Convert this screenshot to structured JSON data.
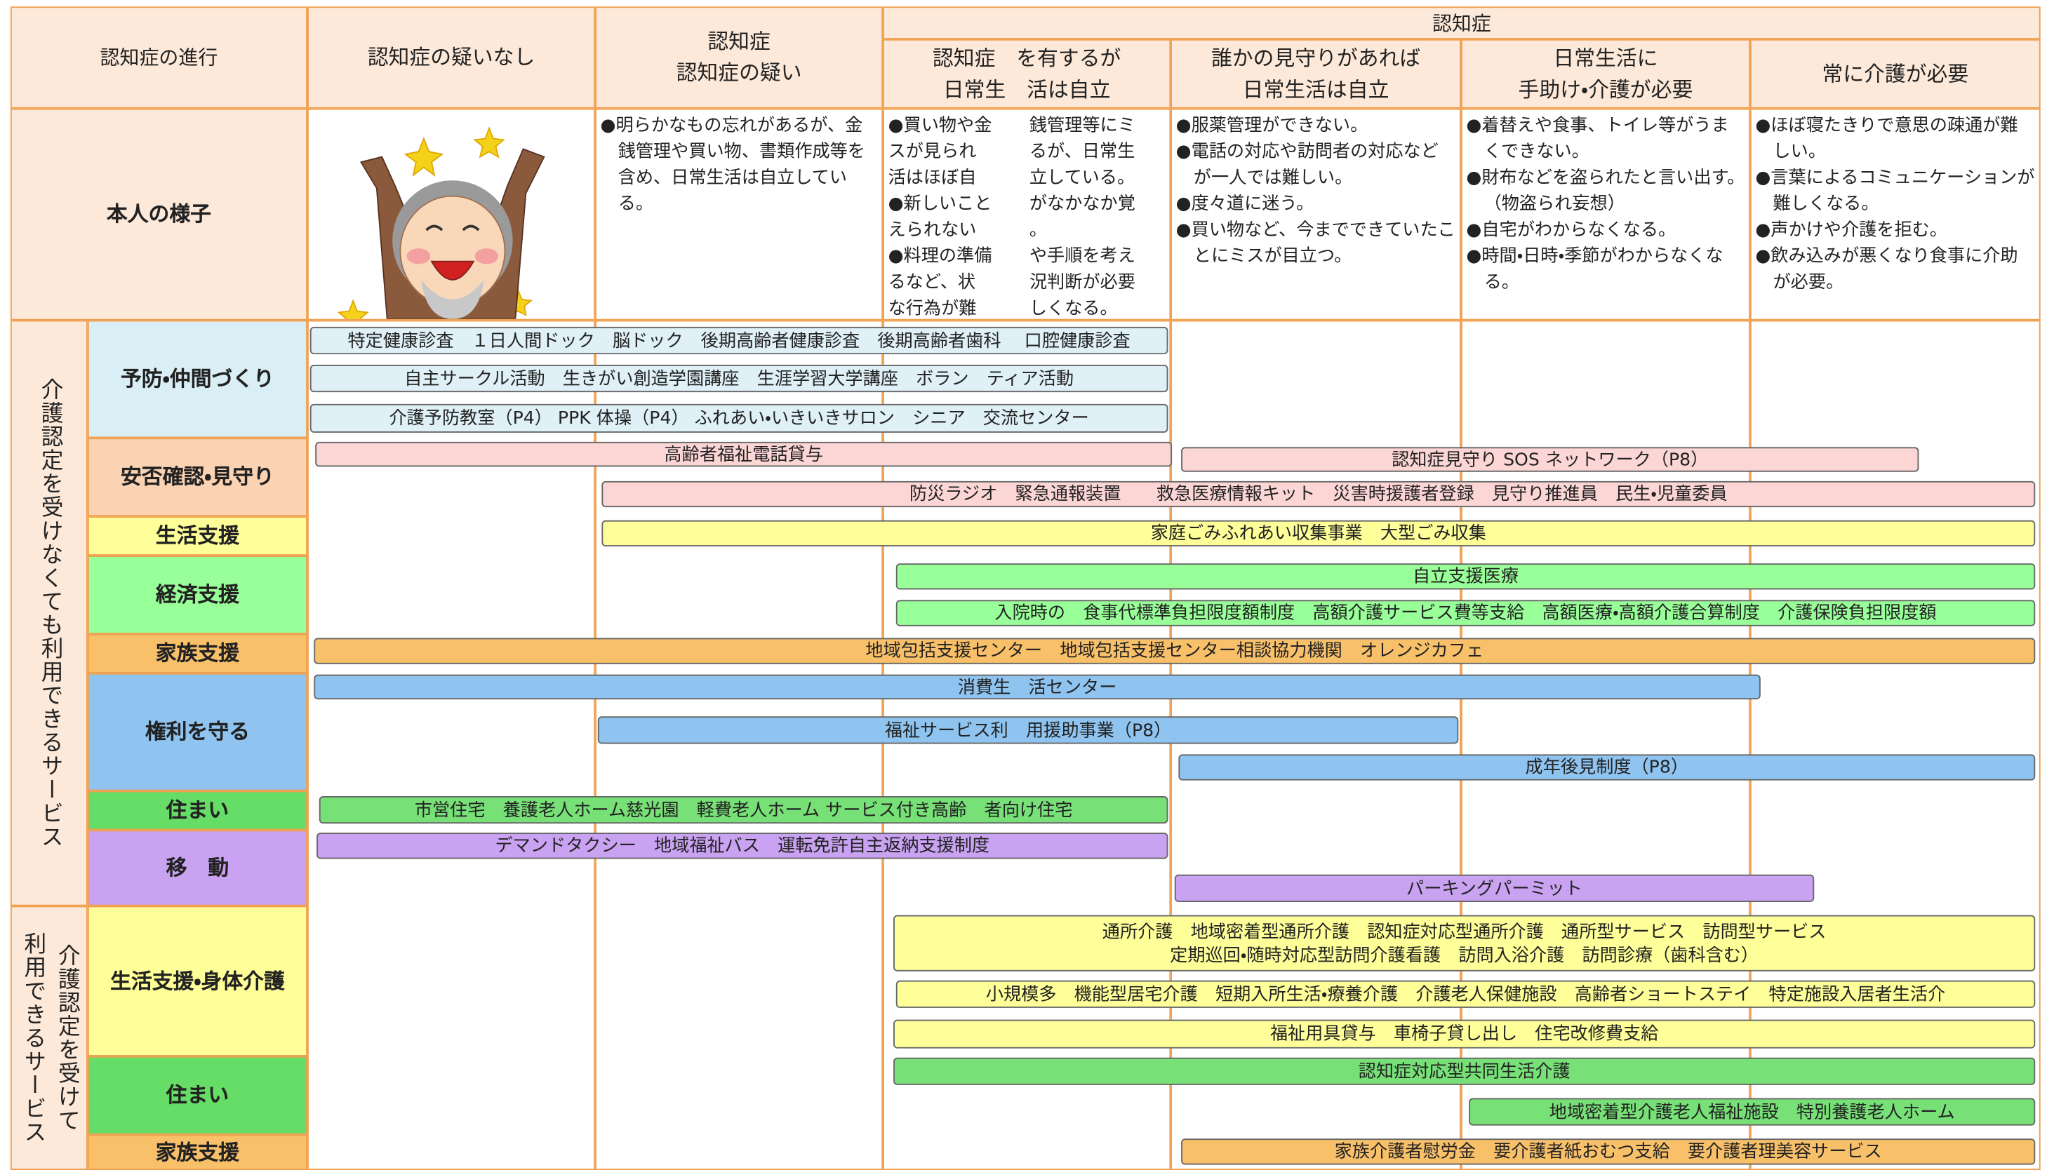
{
  "header": {
    "progression": "認知症の進行",
    "dementia": "認知症",
    "stages": [
      "認知症の疑いなし",
      "認知症\n認知症の疑い",
      "認知症　を有するが\n日常生　活は自立",
      "誰かの見守りがあれば\n日常生活は自立",
      "日常生活に\n手助け・介護が必要",
      "常に介護が必要"
    ]
  },
  "condition": {
    "label": "本人の様子",
    "descriptions": [
      [
        "●明らかなもの忘れがあるが、金銭管理や買い物、書類作成等を含め、日常生活は自立している。"
      ],
      {
        "left": [
          "●買い物や金",
          "スが見られ",
          "活はほぼ自",
          "●新しいこと",
          "えられない",
          "●料理の準備",
          "るなど、状",
          "な行為が難"
        ],
        "right": [
          "銭管理等にミ",
          "るが、日常生",
          "立している。",
          "がなかなか覚",
          "。",
          "や手順を考え",
          "況判断が必要",
          "しくなる。"
        ]
      },
      [
        "●服薬管理ができない。",
        "●電話の対応や訪問者の対応などが一人では難しい。",
        "●度々道に迷う。",
        "●買い物など、今までできていたことにミスが目立つ。"
      ],
      [
        "●着替えや食事、トイレ等がうまくできない。",
        "●財布などを盗られたと言い出す。（物盗られ妄想）",
        "●自宅がわからなくなる。",
        "●時間・日時・季節がわからなくなる。"
      ],
      [
        "●ほぼ寝たきりで意思の疎通が難しい。",
        "●言葉によるコミュニケーションが難しくなる。",
        "●声かけや介護を拒む。",
        "●飲み込みが悪くなり食事に介助が必要。"
      ]
    ]
  },
  "groups": [
    "介護認定を受けなくても利用できるサービス",
    "介護認定を受けて\n利用できるサービス"
  ],
  "rows": [
    {
      "label": "予防・仲間づくり",
      "color": "#d9eef5"
    },
    {
      "label": "安否確認・見守り",
      "color": "#fbd3b3"
    },
    {
      "label": "生活支援",
      "color": "#ffff99"
    },
    {
      "label": "経済支援",
      "color": "#99ff99"
    },
    {
      "label": "家族支援",
      "color": "#f9c06a"
    },
    {
      "label": "権利を守る",
      "color": "#8fc4f0"
    },
    {
      "label": "住まい",
      "color": "#66dd66"
    },
    {
      "label": "移　動",
      "color": "#c9a2f2"
    },
    {
      "label": "生活支援・身体介護",
      "color": "#ffff99"
    },
    {
      "label": "住まい",
      "color": "#66dd66"
    },
    {
      "label": "家族支援",
      "color": "#f9c06a"
    }
  ],
  "services": [
    {
      "label": "特定健康診査　１日人間ドック　脳ドック　後期高齢者健康診査　後期高齢者歯科　 口腔健康診査",
      "color": "#dff0f7"
    },
    {
      "label": "自主サークル活動　生きがい創造学園講座　生涯学習大学講座　ボラン　ティア活動",
      "color": "#dff0f7"
    },
    {
      "label": "介護予防教室（P4）  PPK 体操（P4）  ふれあい・いきいきサロン　シニア　交流センター",
      "color": "#dff0f7"
    },
    {
      "label": "高齢者福祉電話貸与",
      "color": "#fcd5d5"
    },
    {
      "label": "認知症見守り SOS ネットワーク（P8）",
      "color": "#fcd5d5"
    },
    {
      "label": "防災ラジオ　緊急通報装置　　救急医療情報キット　災害時援護者登録　見守り推進員　民生・児童委員",
      "color": "#fcd5d5"
    },
    {
      "label": "家庭ごみふれあい収集事業　大型ごみ収集",
      "color": "#ffff99"
    },
    {
      "label": "自立支援医療",
      "color": "#99ff99"
    },
    {
      "label": "入院時の　食事代標準負担限度額制度　高額介護サービス費等支給　高額医療・高額介護合算制度　介護保険負担限度額",
      "color": "#99ff99"
    },
    {
      "label": "地域包括支援センター　地域包括支援センター相談協力機関　オレンジカフェ",
      "color": "#f9c06a"
    },
    {
      "label": "消費生　活センター",
      "color": "#8fc4f0"
    },
    {
      "label": "福祉サービス利　用援助事業（P8）",
      "color": "#8fc4f0"
    },
    {
      "label": "成年後見制度（P8）",
      "color": "#8fc4f0"
    },
    {
      "label": "市営住宅　養護老人ホーム慈光園　軽費老人ホーム  サービス付き高齢　者向け住宅",
      "color": "#77e077"
    },
    {
      "label": "デマンドタクシー　地域福祉バス　運転免許自主返納支援制度",
      "color": "#c9a2f2"
    },
    {
      "label": "パーキングパーミット",
      "color": "#c9a2f2"
    },
    {
      "label": "通所介護　地域密着型通所介護　認知症対応型通所介護　通所型サービス　訪問型サービス\n定期巡回・随時対応型訪問介護看護　訪問入浴介護　訪問診療（歯科含む）",
      "color": "#ffff99"
    },
    {
      "label": "小規模多　機能型居宅介護　短期入所生活・療養介護　介護老人保健施設　高齢者ショートステイ　特定施設入居者生活介",
      "color": "#ffff99"
    },
    {
      "label": "福祉用具貸与　車椅子貸し出し　住宅改修費支給",
      "color": "#ffff99"
    },
    {
      "label": "認知症対応型共同生活介護",
      "color": "#77e077"
    },
    {
      "label": "地域密着型介護老人福祉施設　特別養護老人ホーム",
      "color": "#77e077"
    },
    {
      "label": "家族介護者慰労金　要介護者紙おむつ支給　要介護者理美容サービス",
      "color": "#f9c06a"
    }
  ]
}
